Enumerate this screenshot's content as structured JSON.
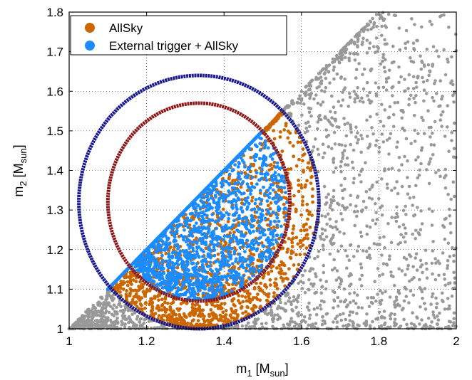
{
  "chart_data": {
    "type": "scatter",
    "title": "",
    "xlabel": "m",
    "xlabel_sub": "1",
    "xlabel_unit_prefix": " [M",
    "xlabel_unit_sub": "sun",
    "xlabel_unit_suffix": "]",
    "ylabel": "m",
    "ylabel_sub": "2",
    "ylabel_unit_prefix": " [M",
    "ylabel_unit_sub": "sun",
    "ylabel_unit_suffix": "]",
    "xlim": [
      1.0,
      2.0
    ],
    "ylim": [
      1.0,
      1.8
    ],
    "xticks": [
      "1",
      "1.2",
      "1.4",
      "1.6",
      "1.8",
      "2"
    ],
    "xtick_values": [
      1.0,
      1.2,
      1.4,
      1.6,
      1.8,
      2.0
    ],
    "yticks": [
      "1",
      "1.1",
      "1.2",
      "1.3",
      "1.4",
      "1.5",
      "1.6",
      "1.7",
      "1.8"
    ],
    "ytick_values": [
      1.0,
      1.1,
      1.2,
      1.3,
      1.4,
      1.5,
      1.6,
      1.7,
      1.8
    ],
    "grid": "dotted",
    "legend_position": "top-left",
    "series": [
      {
        "name": "AllSky",
        "color": "#cc6600",
        "marker": "dot"
      },
      {
        "name": "External trigger + AllSky",
        "color": "#1a8cff",
        "marker": "dot"
      }
    ],
    "background_points": {
      "color": "#999999",
      "region": "m2 <= m1"
    },
    "circles": [
      {
        "color": "#1a1a8c",
        "center": [
          1.335,
          1.32
        ],
        "radius_x": 0.31,
        "radius_y": 0.32
      },
      {
        "color": "#8c1a1a",
        "center": [
          1.335,
          1.32
        ],
        "radius_x": 0.235,
        "radius_y": 0.25
      }
    ],
    "external_trigger_edge": {
      "from": [
        1.1,
        1.1
      ],
      "to": [
        1.5,
        1.5
      ]
    }
  }
}
